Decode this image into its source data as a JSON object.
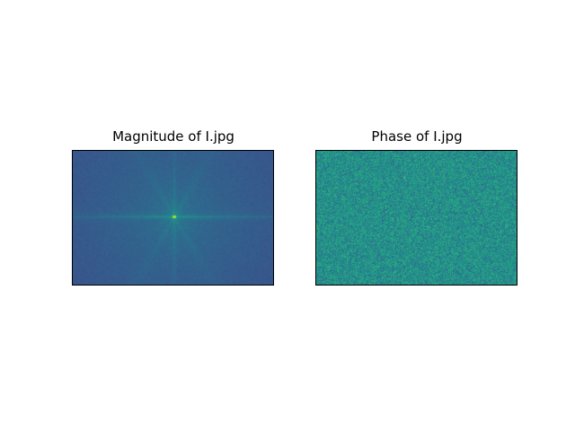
{
  "chart_data": [
    {
      "type": "heatmap",
      "title": "Magnitude of I.jpg",
      "colormap": "viridis",
      "axes_ticks": false,
      "description_values": {
        "pattern": "fft-magnitude-log-centered",
        "center_peak": 1.0,
        "background_level": 0.3
      }
    },
    {
      "type": "heatmap",
      "title": "Phase of I.jpg",
      "colormap": "viridis",
      "axes_ticks": false,
      "description_values": {
        "pattern": "fft-phase-uniform-noise",
        "mean_level": 0.5
      }
    }
  ]
}
